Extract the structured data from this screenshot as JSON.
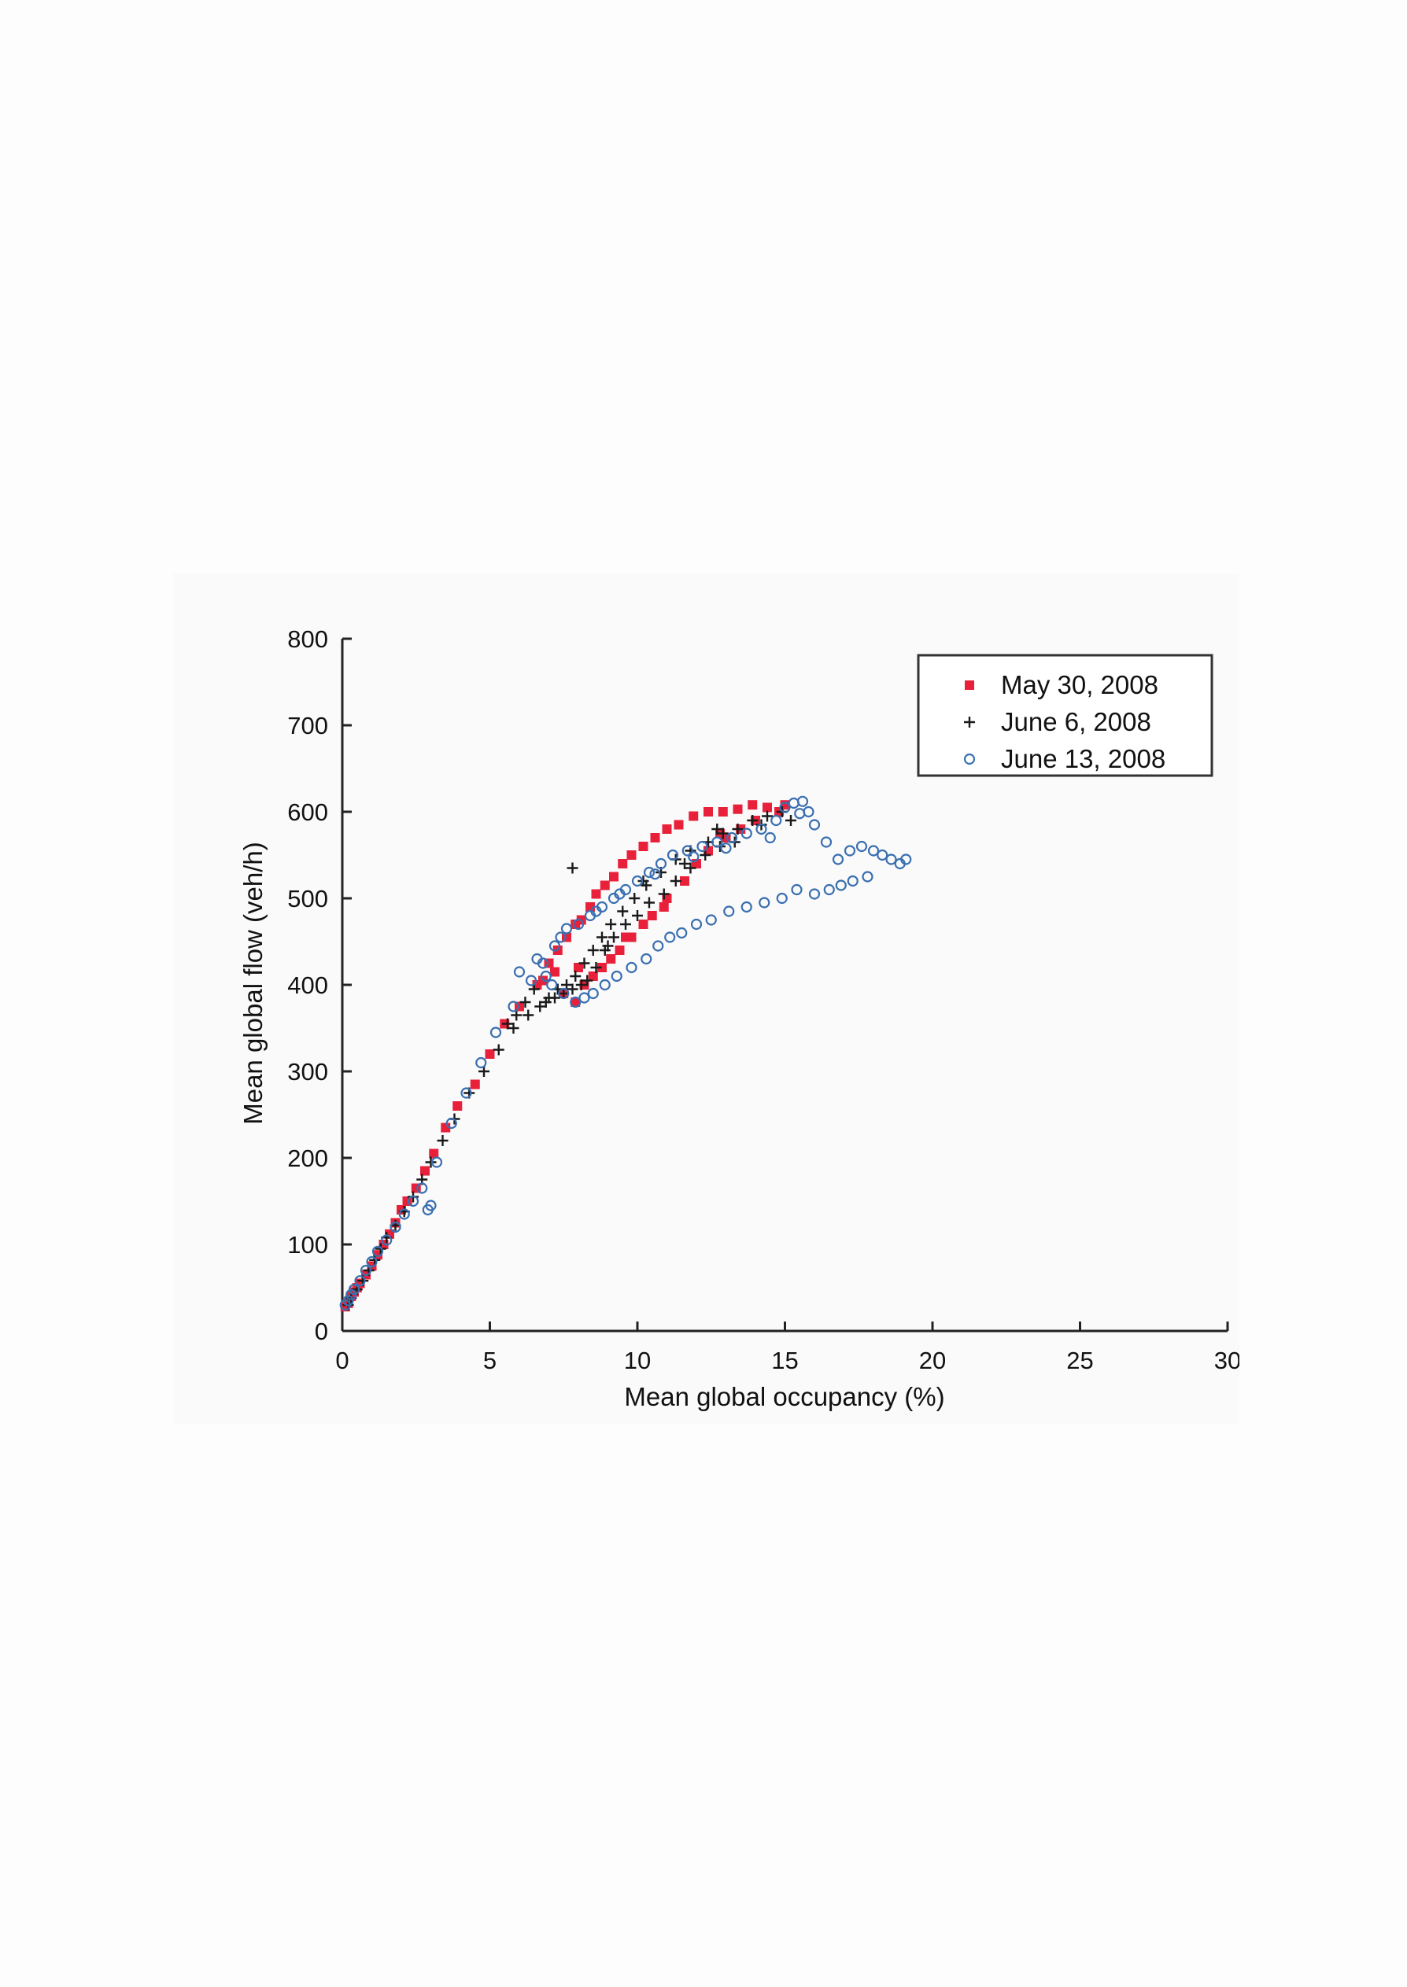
{
  "chart_data": {
    "type": "scatter",
    "title": "",
    "xlabel": "Mean global occupancy (%)",
    "ylabel": "Mean global flow (veh/h)",
    "xlim": [
      0,
      30
    ],
    "ylim": [
      0,
      800
    ],
    "xticks": [
      "0",
      "5",
      "10",
      "15",
      "20",
      "25",
      "30"
    ],
    "yticks": [
      "0",
      "100",
      "200",
      "300",
      "400",
      "500",
      "600",
      "700",
      "800"
    ],
    "grid": false,
    "legend_position": "top-right",
    "series": [
      {
        "name": "May 30, 2008",
        "marker": "square",
        "color": "#e8203a",
        "points": [
          [
            0.1,
            28
          ],
          [
            0.2,
            32
          ],
          [
            0.3,
            40
          ],
          [
            0.4,
            45
          ],
          [
            0.5,
            50
          ],
          [
            0.6,
            55
          ],
          [
            0.8,
            65
          ],
          [
            1.0,
            75
          ],
          [
            1.2,
            88
          ],
          [
            1.4,
            100
          ],
          [
            1.6,
            112
          ],
          [
            1.8,
            125
          ],
          [
            2.0,
            140
          ],
          [
            2.2,
            150
          ],
          [
            2.5,
            165
          ],
          [
            2.8,
            185
          ],
          [
            3.1,
            205
          ],
          [
            3.5,
            235
          ],
          [
            3.9,
            260
          ],
          [
            4.5,
            285
          ],
          [
            5.0,
            320
          ],
          [
            5.5,
            355
          ],
          [
            6.0,
            375
          ],
          [
            6.6,
            400
          ],
          [
            7.0,
            425
          ],
          [
            7.3,
            440
          ],
          [
            7.6,
            455
          ],
          [
            7.9,
            470
          ],
          [
            8.1,
            475
          ],
          [
            8.4,
            490
          ],
          [
            8.6,
            505
          ],
          [
            8.9,
            515
          ],
          [
            9.2,
            525
          ],
          [
            9.5,
            540
          ],
          [
            9.8,
            550
          ],
          [
            10.2,
            560
          ],
          [
            10.6,
            570
          ],
          [
            11.0,
            580
          ],
          [
            11.4,
            585
          ],
          [
            11.9,
            595
          ],
          [
            12.4,
            600
          ],
          [
            12.9,
            600
          ],
          [
            13.4,
            603
          ],
          [
            13.9,
            608
          ],
          [
            14.4,
            605
          ],
          [
            14.8,
            600
          ],
          [
            15.0,
            608
          ],
          [
            7.5,
            390
          ],
          [
            7.9,
            380
          ],
          [
            8.2,
            400
          ],
          [
            8.5,
            410
          ],
          [
            8.8,
            420
          ],
          [
            9.1,
            430
          ],
          [
            9.4,
            440
          ],
          [
            9.8,
            455
          ],
          [
            10.2,
            470
          ],
          [
            10.5,
            480
          ],
          [
            11.0,
            500
          ],
          [
            11.6,
            520
          ],
          [
            12.0,
            540
          ],
          [
            12.4,
            555
          ],
          [
            13.0,
            570
          ],
          [
            13.5,
            580
          ],
          [
            14.0,
            590
          ],
          [
            8.0,
            420
          ],
          [
            7.2,
            415
          ],
          [
            6.8,
            405
          ],
          [
            9.6,
            455
          ],
          [
            10.9,
            490
          ],
          [
            12.8,
            575
          ]
        ]
      },
      {
        "name": "June 6, 2008",
        "marker": "plus",
        "color": "#1a1a1a",
        "points": [
          [
            0.2,
            30
          ],
          [
            0.3,
            38
          ],
          [
            0.5,
            48
          ],
          [
            0.7,
            58
          ],
          [
            0.9,
            70
          ],
          [
            1.1,
            82
          ],
          [
            1.3,
            95
          ],
          [
            1.5,
            108
          ],
          [
            1.8,
            122
          ],
          [
            2.1,
            138
          ],
          [
            2.4,
            155
          ],
          [
            2.7,
            175
          ],
          [
            3.0,
            195
          ],
          [
            3.4,
            220
          ],
          [
            3.8,
            245
          ],
          [
            4.3,
            275
          ],
          [
            4.8,
            300
          ],
          [
            5.3,
            325
          ],
          [
            5.8,
            350
          ],
          [
            6.3,
            365
          ],
          [
            6.7,
            375
          ],
          [
            7.0,
            385
          ],
          [
            7.3,
            395
          ],
          [
            7.6,
            400
          ],
          [
            7.9,
            410
          ],
          [
            8.2,
            425
          ],
          [
            8.5,
            440
          ],
          [
            8.8,
            455
          ],
          [
            9.1,
            470
          ],
          [
            9.5,
            485
          ],
          [
            9.9,
            500
          ],
          [
            10.3,
            515
          ],
          [
            10.8,
            530
          ],
          [
            11.3,
            545
          ],
          [
            11.8,
            555
          ],
          [
            12.4,
            565
          ],
          [
            12.9,
            575
          ],
          [
            13.4,
            580
          ],
          [
            13.9,
            590
          ],
          [
            14.4,
            595
          ],
          [
            14.9,
            600
          ],
          [
            15.2,
            590
          ],
          [
            6.9,
            380
          ],
          [
            7.2,
            385
          ],
          [
            7.5,
            390
          ],
          [
            7.8,
            395
          ],
          [
            8.1,
            400
          ],
          [
            8.3,
            405
          ],
          [
            8.6,
            420
          ],
          [
            8.9,
            440
          ],
          [
            9.2,
            455
          ],
          [
            9.6,
            470
          ],
          [
            10.0,
            480
          ],
          [
            10.4,
            495
          ],
          [
            10.9,
            505
          ],
          [
            11.3,
            520
          ],
          [
            11.8,
            535
          ],
          [
            12.3,
            550
          ],
          [
            12.8,
            560
          ],
          [
            13.3,
            565
          ],
          [
            7.8,
            535
          ],
          [
            6.5,
            395
          ],
          [
            6.2,
            380
          ],
          [
            5.9,
            365
          ],
          [
            5.6,
            355
          ],
          [
            9.0,
            445
          ],
          [
            10.2,
            520
          ],
          [
            11.6,
            540
          ],
          [
            12.7,
            580
          ],
          [
            14.2,
            585
          ]
        ]
      },
      {
        "name": "June 13, 2008",
        "marker": "circle",
        "color": "#3a6fb0",
        "points": [
          [
            0.1,
            30
          ],
          [
            0.2,
            35
          ],
          [
            0.3,
            42
          ],
          [
            0.4,
            48
          ],
          [
            0.6,
            58
          ],
          [
            0.8,
            70
          ],
          [
            1.0,
            80
          ],
          [
            1.2,
            92
          ],
          [
            1.5,
            105
          ],
          [
            1.8,
            120
          ],
          [
            2.1,
            135
          ],
          [
            2.4,
            150
          ],
          [
            2.7,
            165
          ],
          [
            3.0,
            145
          ],
          [
            2.9,
            140
          ],
          [
            3.2,
            195
          ],
          [
            3.7,
            240
          ],
          [
            4.2,
            275
          ],
          [
            4.7,
            310
          ],
          [
            5.2,
            345
          ],
          [
            5.8,
            375
          ],
          [
            6.4,
            405
          ],
          [
            6.8,
            425
          ],
          [
            7.2,
            445
          ],
          [
            7.6,
            465
          ],
          [
            8.0,
            470
          ],
          [
            8.4,
            480
          ],
          [
            8.8,
            490
          ],
          [
            9.2,
            500
          ],
          [
            9.6,
            510
          ],
          [
            10.0,
            520
          ],
          [
            10.4,
            530
          ],
          [
            10.8,
            540
          ],
          [
            11.2,
            550
          ],
          [
            11.7,
            555
          ],
          [
            12.2,
            560
          ],
          [
            12.7,
            565
          ],
          [
            13.2,
            570
          ],
          [
            13.7,
            575
          ],
          [
            14.2,
            580
          ],
          [
            14.7,
            590
          ],
          [
            15.0,
            605
          ],
          [
            15.3,
            610
          ],
          [
            15.6,
            612
          ],
          [
            15.8,
            600
          ],
          [
            16.0,
            585
          ],
          [
            16.4,
            565
          ],
          [
            16.8,
            545
          ],
          [
            17.2,
            555
          ],
          [
            17.6,
            560
          ],
          [
            18.0,
            555
          ],
          [
            18.3,
            550
          ],
          [
            18.6,
            545
          ],
          [
            18.9,
            540
          ],
          [
            19.1,
            545
          ],
          [
            17.8,
            525
          ],
          [
            17.3,
            520
          ],
          [
            16.9,
            515
          ],
          [
            16.5,
            510
          ],
          [
            16.0,
            505
          ],
          [
            15.4,
            510
          ],
          [
            14.9,
            500
          ],
          [
            14.3,
            495
          ],
          [
            13.7,
            490
          ],
          [
            13.1,
            485
          ],
          [
            12.5,
            475
          ],
          [
            12.0,
            470
          ],
          [
            11.5,
            460
          ],
          [
            11.1,
            455
          ],
          [
            10.7,
            445
          ],
          [
            10.3,
            430
          ],
          [
            9.8,
            420
          ],
          [
            9.3,
            410
          ],
          [
            8.9,
            400
          ],
          [
            8.5,
            390
          ],
          [
            8.2,
            385
          ],
          [
            7.9,
            380
          ],
          [
            7.5,
            390
          ],
          [
            7.1,
            400
          ],
          [
            6.9,
            410
          ],
          [
            15.5,
            598
          ],
          [
            14.5,
            570
          ],
          [
            13.0,
            558
          ],
          [
            11.9,
            548
          ],
          [
            10.6,
            528
          ],
          [
            9.4,
            505
          ],
          [
            8.6,
            485
          ],
          [
            7.4,
            455
          ],
          [
            6.6,
            430
          ],
          [
            6.0,
            415
          ]
        ]
      }
    ]
  }
}
